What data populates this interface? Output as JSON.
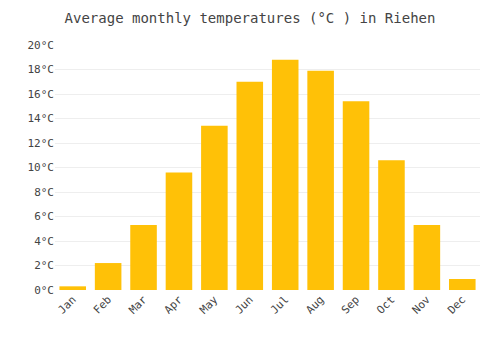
{
  "chart_data": {
    "type": "bar",
    "title": "Average monthly temperatures (°C ) in Riehen",
    "categories": [
      "Jan",
      "Feb",
      "Mar",
      "Apr",
      "May",
      "Jun",
      "Jul",
      "Aug",
      "Sep",
      "Oct",
      "Nov",
      "Dec"
    ],
    "values": [
      0.3,
      2.2,
      5.3,
      9.6,
      13.4,
      17.0,
      18.8,
      17.9,
      15.4,
      10.6,
      5.3,
      0.9
    ],
    "color": "#FFC107",
    "ylim": [
      0,
      20
    ],
    "yticks": [
      {
        "value": 0,
        "label": "0°C"
      },
      {
        "value": 2,
        "label": "2°C"
      },
      {
        "value": 4,
        "label": "4°C"
      },
      {
        "value": 6,
        "label": "6°C"
      },
      {
        "value": 8,
        "label": "8°C"
      },
      {
        "value": 10,
        "label": "10°C"
      },
      {
        "value": 12,
        "label": "12°C"
      },
      {
        "value": 14,
        "label": "14°C"
      },
      {
        "value": 16,
        "label": "16°C"
      },
      {
        "value": 18,
        "label": "18°C"
      },
      {
        "value": 20,
        "label": "20°C"
      }
    ],
    "grid": true
  }
}
